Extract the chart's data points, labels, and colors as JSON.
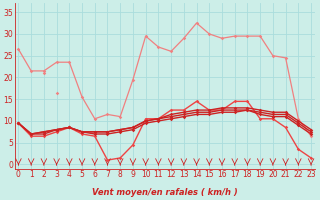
{
  "xlabel": "Vent moyen/en rafales ( km/h )",
  "background_color": "#cceee8",
  "grid_color": "#aadddd",
  "x_values": [
    0,
    1,
    2,
    3,
    4,
    5,
    6,
    7,
    8,
    9,
    10,
    11,
    12,
    13,
    14,
    15,
    16,
    17,
    18,
    19,
    20,
    21,
    22,
    23
  ],
  "series": [
    {
      "color": "#f08080",
      "linewidth": 0.9,
      "marker": "D",
      "markersize": 1.8,
      "y": [
        26.5,
        21.5,
        21.5,
        23.5,
        23.5,
        15.5,
        10.5,
        11.5,
        11.0,
        19.5,
        29.5,
        27.0,
        26.0,
        29.0,
        32.5,
        30.0,
        29.0,
        29.5,
        29.5,
        29.5,
        25.0,
        24.5,
        10.5,
        6.5
      ]
    },
    {
      "color": "#f08080",
      "linewidth": 0.9,
      "marker": "D",
      "markersize": 1.8,
      "y": [
        null,
        null,
        null,
        16.5,
        null,
        null,
        null,
        null,
        null,
        null,
        null,
        null,
        null,
        null,
        null,
        null,
        null,
        null,
        null,
        null,
        null,
        null,
        null,
        null
      ]
    },
    {
      "color": "#f08080",
      "linewidth": 0.9,
      "marker": "D",
      "markersize": 1.8,
      "y": [
        null,
        null,
        21.0,
        null,
        null,
        null,
        null,
        null,
        null,
        null,
        null,
        null,
        null,
        null,
        null,
        null,
        null,
        null,
        null,
        null,
        null,
        null,
        null,
        null
      ]
    },
    {
      "color": "#ee4444",
      "linewidth": 1.0,
      "marker": "D",
      "markersize": 1.8,
      "y": [
        9.5,
        6.5,
        6.5,
        7.5,
        8.5,
        7.0,
        6.5,
        1.0,
        1.5,
        4.5,
        10.5,
        10.5,
        12.5,
        12.5,
        14.5,
        12.5,
        12.5,
        14.5,
        14.5,
        10.5,
        10.5,
        8.5,
        3.5,
        1.5
      ]
    },
    {
      "color": "#cc2222",
      "linewidth": 1.0,
      "marker": "D",
      "markersize": 1.8,
      "y": [
        9.5,
        7.0,
        7.0,
        8.0,
        8.5,
        7.5,
        7.0,
        7.0,
        7.5,
        8.0,
        9.5,
        10.0,
        10.5,
        11.0,
        11.5,
        11.5,
        12.0,
        12.0,
        12.5,
        11.5,
        11.0,
        11.0,
        9.0,
        7.0
      ]
    },
    {
      "color": "#cc2222",
      "linewidth": 1.0,
      "marker": "D",
      "markersize": 1.8,
      "y": [
        9.5,
        7.0,
        7.5,
        8.0,
        8.5,
        7.5,
        7.5,
        7.5,
        8.0,
        8.5,
        10.0,
        10.5,
        11.0,
        11.5,
        12.0,
        12.0,
        12.5,
        12.5,
        12.5,
        12.0,
        11.5,
        11.5,
        9.5,
        7.5
      ]
    },
    {
      "color": "#cc2222",
      "linewidth": 1.0,
      "marker": "D",
      "markersize": 1.8,
      "y": [
        9.5,
        7.0,
        7.5,
        8.0,
        8.5,
        7.5,
        7.5,
        7.5,
        8.0,
        8.5,
        10.0,
        10.5,
        11.5,
        12.0,
        12.5,
        12.5,
        13.0,
        13.0,
        13.0,
        12.5,
        12.0,
        12.0,
        10.0,
        8.0
      ]
    }
  ],
  "yticks": [
    0,
    5,
    10,
    15,
    20,
    25,
    30,
    35
  ],
  "ylim": [
    -1,
    37
  ],
  "xlim": [
    -0.3,
    23.3
  ],
  "tick_color": "#cc2222",
  "label_color": "#cc2222",
  "arrow_color": "#cc2222"
}
